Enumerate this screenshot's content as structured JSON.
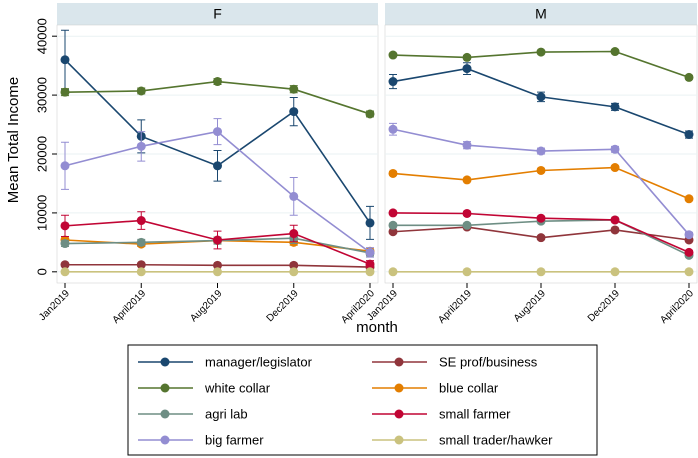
{
  "chart_data": {
    "type": "line",
    "y_title": "Mean Total Income",
    "x_title": "month",
    "categories": [
      "Jan2019",
      "April2019",
      "Aug2019",
      "Dec2019",
      "April2020"
    ],
    "ylim": [
      -1900,
      41900
    ],
    "yticks": [
      0,
      10000,
      20000,
      30000,
      40000
    ],
    "grid": true,
    "series": [
      {
        "name": "manager/legislator",
        "color": "#1a476f"
      },
      {
        "name": "SE prof/business",
        "color": "#90353b"
      },
      {
        "name": "white collar",
        "color": "#55752f"
      },
      {
        "name": "blue collar",
        "color": "#e37e00"
      },
      {
        "name": "agri lab",
        "color": "#6e8e84"
      },
      {
        "name": "small farmer",
        "color": "#c10534"
      },
      {
        "name": "big farmer",
        "color": "#938dd2"
      },
      {
        "name": "small trader/hawker",
        "color": "#cac27e"
      }
    ],
    "panels": [
      {
        "title": "F",
        "series": [
          {
            "values": [
              36000,
              23000,
              18000,
              27200,
              8300
            ],
            "errors": [
              5000,
              2800,
              2600,
              2400,
              2800
            ]
          },
          {
            "values": [
              1200,
              1200,
              1100,
              1100,
              800
            ],
            "errors": [
              200,
              200,
              200,
              200,
              200
            ]
          },
          {
            "values": [
              30500,
              30700,
              32300,
              31000,
              26800
            ],
            "errors": [
              600,
              500,
              500,
              600,
              500
            ]
          },
          {
            "values": [
              5400,
              4700,
              5300,
              5000,
              3500
            ],
            "errors": [
              500,
              400,
              400,
              500,
              400
            ]
          },
          {
            "values": [
              4800,
              5000,
              5300,
              5700,
              3200
            ],
            "errors": [
              500,
              500,
              600,
              900,
              500
            ]
          },
          {
            "values": [
              7800,
              8700,
              5400,
              6500,
              1300
            ],
            "errors": [
              1800,
              1500,
              1500,
              1400,
              600
            ]
          },
          {
            "values": [
              18000,
              21300,
              23800,
              12800,
              3300
            ],
            "errors": [
              4000,
              2500,
              2200,
              3200,
              800
            ]
          },
          {
            "values": [
              0,
              0,
              0,
              0,
              0
            ],
            "errors": [
              0,
              0,
              0,
              0,
              0
            ]
          }
        ]
      },
      {
        "title": "M",
        "series": [
          {
            "values": [
              32300,
              34500,
              29700,
              28000,
              23300
            ],
            "errors": [
              1200,
              1000,
              800,
              600,
              600
            ]
          },
          {
            "values": [
              6800,
              7600,
              5800,
              7100,
              5400
            ],
            "errors": [
              300,
              300,
              300,
              300,
              300
            ]
          },
          {
            "values": [
              36800,
              36400,
              37300,
              37400,
              33000
            ],
            "errors": [
              300,
              300,
              300,
              300,
              300
            ]
          },
          {
            "values": [
              16700,
              15600,
              17200,
              17700,
              12400
            ],
            "errors": [
              300,
              300,
              300,
              300,
              300
            ]
          },
          {
            "values": [
              7900,
              7900,
              8600,
              8800,
              2800
            ],
            "errors": [
              300,
              300,
              300,
              300,
              300
            ]
          },
          {
            "values": [
              10000,
              9900,
              9100,
              8800,
              3300
            ],
            "errors": [
              300,
              300,
              300,
              300,
              300
            ]
          },
          {
            "values": [
              24200,
              21500,
              20500,
              20800,
              6300
            ],
            "errors": [
              1000,
              600,
              500,
              500,
              400
            ]
          },
          {
            "values": [
              0,
              0,
              0,
              0,
              0
            ],
            "errors": [
              0,
              0,
              0,
              0,
              0
            ]
          }
        ]
      }
    ]
  }
}
